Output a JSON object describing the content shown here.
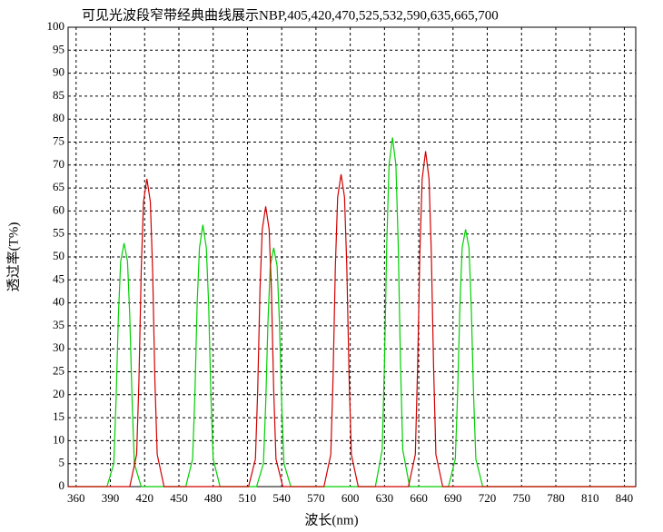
{
  "chart_data": {
    "type": "line",
    "title": "可见光波段窄带经典曲线展示NBP,405,420,470,525,532,590,635,665,700",
    "x_label": "波长(nm)",
    "y_label": "透过率(T%)",
    "xlim": [
      353,
      850
    ],
    "xticks": [
      360,
      390,
      420,
      450,
      480,
      510,
      540,
      570,
      600,
      630,
      660,
      690,
      720,
      750,
      780,
      810,
      840
    ],
    "ylim": [
      0,
      100
    ],
    "yticks": [
      0,
      5,
      10,
      15,
      20,
      25,
      30,
      35,
      40,
      45,
      50,
      55,
      60,
      65,
      70,
      75,
      80,
      85,
      90,
      95,
      100
    ],
    "grid": true,
    "series": [
      {
        "color": "#00d000",
        "x": [
          353,
          387,
          393,
          395,
          397,
          399,
          402,
          405,
          407,
          409,
          411,
          417,
          456,
          462,
          464,
          466,
          468,
          471,
          474,
          476,
          478,
          480,
          486,
          518,
          524,
          526,
          528,
          530,
          533,
          536,
          538,
          540,
          542,
          548,
          622,
          628,
          630,
          632,
          634,
          637,
          640,
          642,
          644,
          646,
          652,
          686,
          692,
          694,
          696,
          698,
          701,
          704,
          706,
          708,
          710,
          716,
          850
        ],
        "values": [
          0,
          0,
          5,
          19,
          37,
          49,
          53,
          49,
          37,
          19,
          5,
          0,
          0,
          6,
          20,
          40,
          52,
          57,
          52,
          40,
          20,
          6,
          0,
          0,
          5,
          18,
          36,
          48,
          52,
          48,
          36,
          18,
          5,
          0,
          0,
          8,
          27,
          53,
          70,
          76,
          70,
          53,
          27,
          8,
          0,
          0,
          6,
          20,
          39,
          52,
          56,
          52,
          39,
          20,
          6,
          0,
          0
        ]
      },
      {
        "color": "#d00000",
        "x": [
          353,
          407,
          413,
          415,
          417,
          419,
          422,
          425,
          427,
          429,
          431,
          437,
          511,
          517,
          519,
          521,
          523,
          526,
          529,
          531,
          533,
          535,
          541,
          577,
          583,
          585,
          587,
          589,
          592,
          595,
          597,
          599,
          601,
          607,
          651,
          657,
          659,
          661,
          663,
          666,
          669,
          671,
          673,
          675,
          681,
          850
        ],
        "values": [
          0,
          0,
          7,
          23,
          47,
          62,
          67,
          62,
          47,
          23,
          7,
          0,
          0,
          6,
          21,
          43,
          56,
          61,
          56,
          43,
          21,
          6,
          0,
          0,
          7,
          24,
          48,
          63,
          68,
          63,
          48,
          24,
          7,
          0,
          0,
          7,
          26,
          51,
          67,
          73,
          67,
          51,
          26,
          7,
          0,
          0
        ]
      }
    ]
  }
}
